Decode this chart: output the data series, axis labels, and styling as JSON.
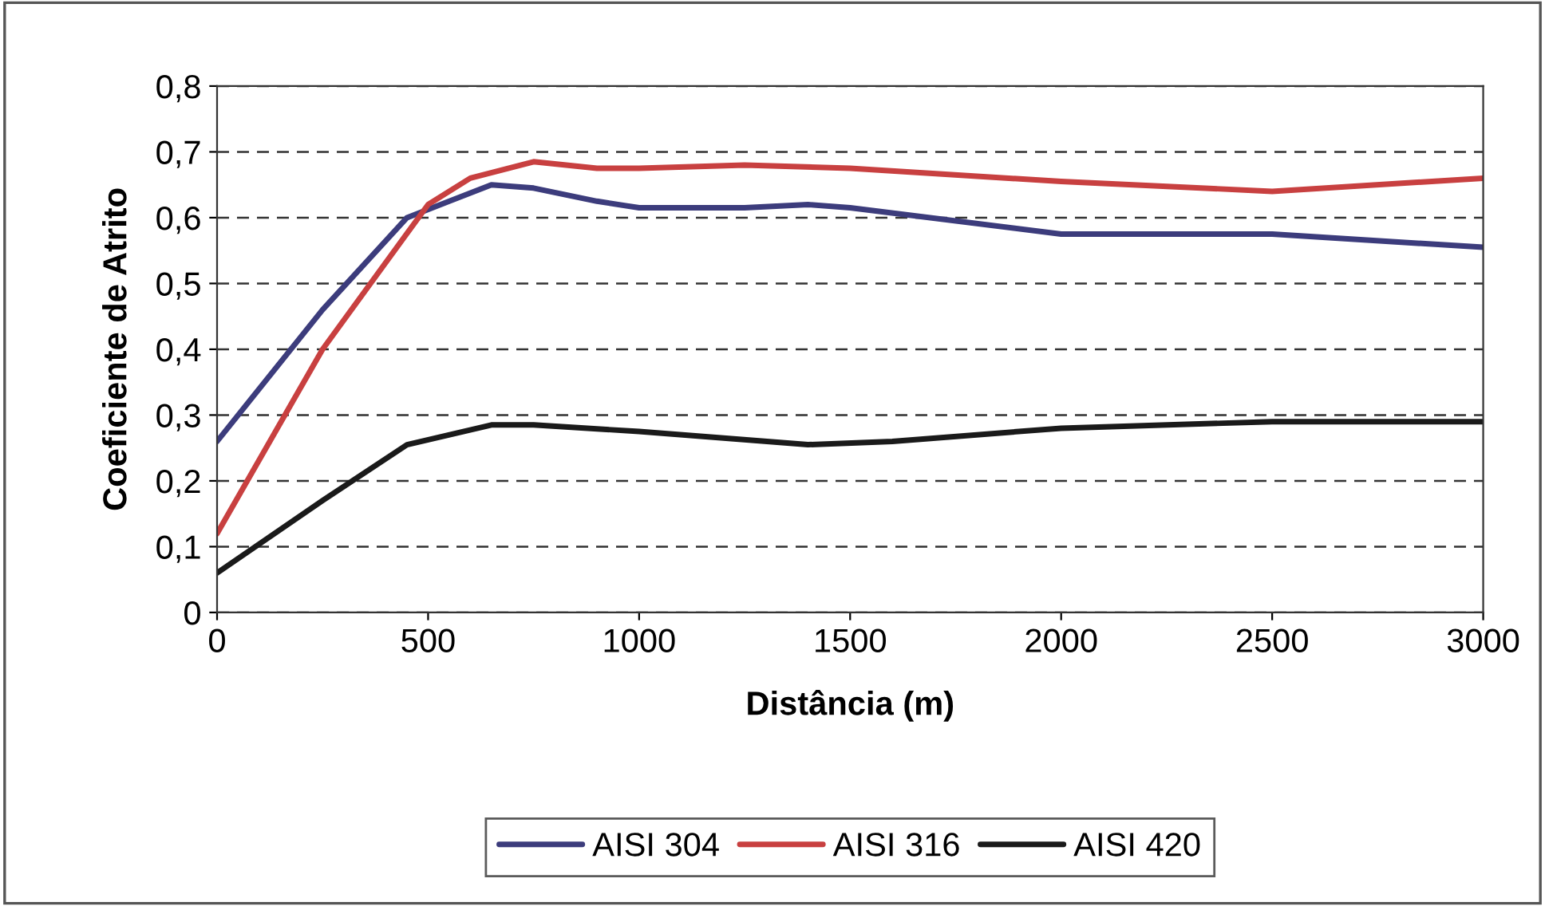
{
  "chart_data": {
    "type": "line",
    "xlabel": "Distância (m)",
    "ylabel": "Coeficiente de Atrito",
    "xlim": [
      0,
      3000
    ],
    "xticks": [
      0,
      500,
      1000,
      1500,
      2000,
      2500,
      3000
    ],
    "ylim": [
      0,
      0.8
    ],
    "yticks": [
      {
        "value": 0,
        "label": "0"
      },
      {
        "value": 0.1,
        "label": "0,1"
      },
      {
        "value": 0.2,
        "label": "0,2"
      },
      {
        "value": 0.3,
        "label": "0,3"
      },
      {
        "value": 0.4,
        "label": "0,4"
      },
      {
        "value": 0.5,
        "label": "0,5"
      },
      {
        "value": 0.6,
        "label": "0,6"
      },
      {
        "value": 0.7,
        "label": "0,7"
      },
      {
        "value": 0.8,
        "label": "0,8"
      }
    ],
    "grid": "y",
    "legend": "bottom",
    "marker": "none",
    "line_style": "solid",
    "series": [
      {
        "name": "AISI 304",
        "color": "#3c3c7c",
        "x": [
          0,
          250,
          450,
          650,
          750,
          900,
          1000,
          1250,
          1400,
          1500,
          2000,
          2500,
          3000
        ],
        "values": [
          0.26,
          0.46,
          0.6,
          0.65,
          0.645,
          0.625,
          0.615,
          0.615,
          0.62,
          0.615,
          0.575,
          0.575,
          0.555
        ]
      },
      {
        "name": "AISI 316",
        "color": "#c84040",
        "x": [
          0,
          250,
          500,
          600,
          750,
          900,
          1000,
          1250,
          1500,
          2000,
          2500,
          3000
        ],
        "values": [
          0.12,
          0.4,
          0.62,
          0.66,
          0.685,
          0.675,
          0.675,
          0.68,
          0.675,
          0.655,
          0.64,
          0.66
        ]
      },
      {
        "name": "AISI 420",
        "color": "#1a1a1a",
        "x": [
          0,
          250,
          450,
          650,
          750,
          1000,
          1400,
          1600,
          2000,
          2500,
          3000
        ],
        "values": [
          0.06,
          0.17,
          0.255,
          0.285,
          0.285,
          0.275,
          0.255,
          0.26,
          0.28,
          0.29,
          0.29
        ]
      }
    ]
  }
}
